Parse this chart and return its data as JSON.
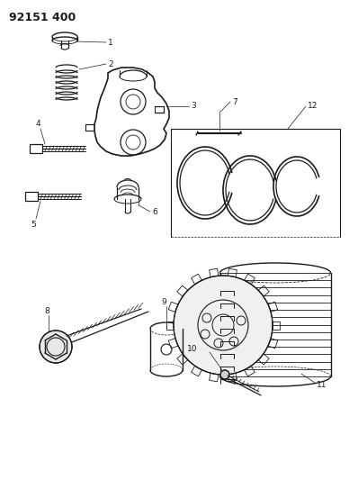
{
  "title": "92151 400",
  "bg": "#ffffff",
  "lc": "#1a1a1a",
  "fig_w": 3.88,
  "fig_h": 5.33,
  "dpi": 100,
  "label_fs": 6.5,
  "title_fs": 9
}
